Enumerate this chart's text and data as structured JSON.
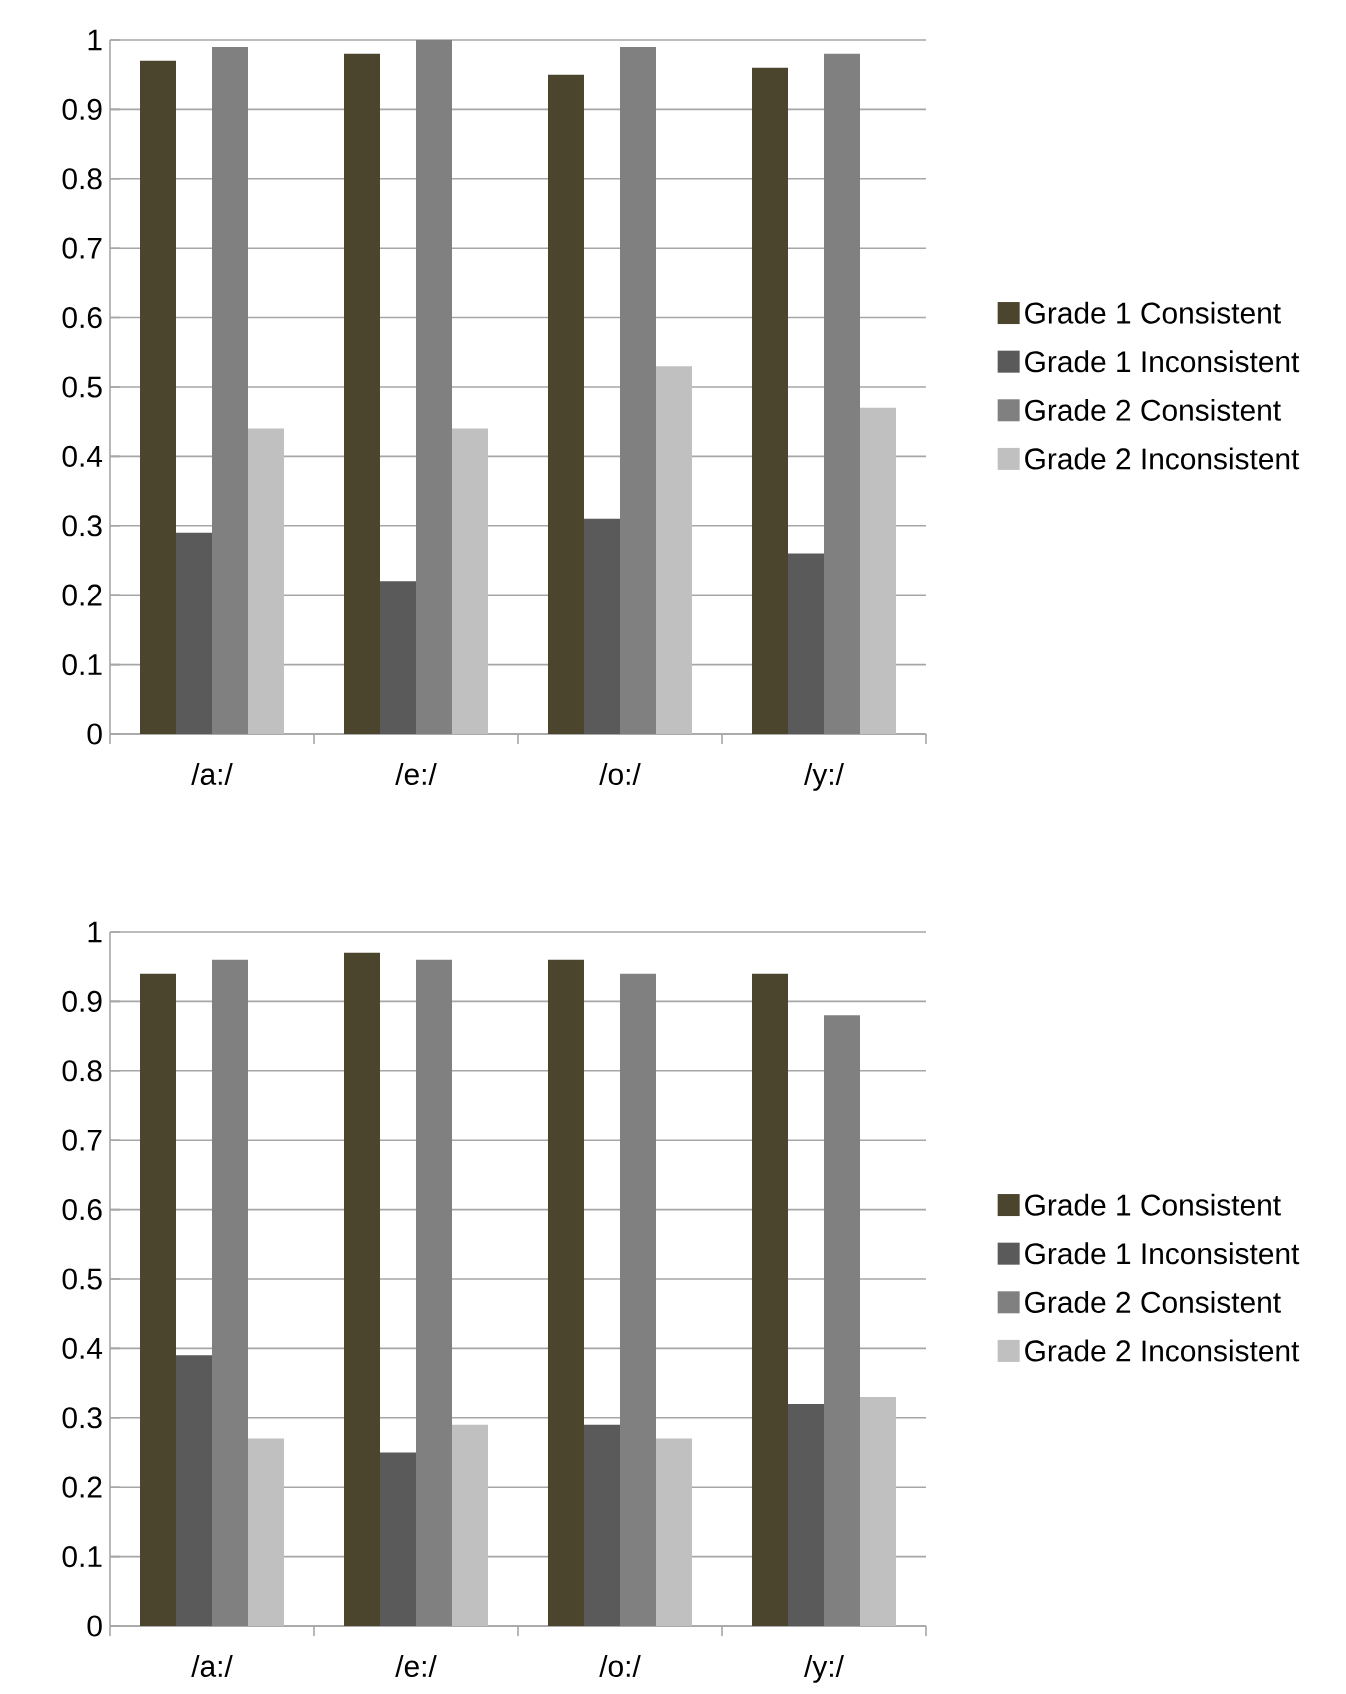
{
  "chart_data": [
    {
      "type": "bar",
      "categories": [
        "/a:/",
        "/e:/",
        "/o:/",
        "/y:/"
      ],
      "ylim": [
        0,
        1
      ],
      "yticks": [
        0,
        0.1,
        0.2,
        0.3,
        0.4,
        0.5,
        0.6,
        0.7,
        0.8,
        0.9,
        1
      ],
      "grid": "y",
      "legend": "right",
      "series": [
        {
          "name": "Grade 1 Consistent",
          "color": "#4b452d",
          "values": [
            0.97,
            0.98,
            0.95,
            0.96
          ]
        },
        {
          "name": "Grade 1 Inconsistent",
          "color": "#5a5a5a",
          "values": [
            0.29,
            0.22,
            0.31,
            0.26
          ]
        },
        {
          "name": "Grade 2 Consistent",
          "color": "#808080",
          "values": [
            0.99,
            1.0,
            0.99,
            0.98
          ]
        },
        {
          "name": "Grade 2 Inconsistent",
          "color": "#c0c0c0",
          "values": [
            0.44,
            0.44,
            0.53,
            0.47
          ]
        }
      ]
    },
    {
      "type": "bar",
      "categories": [
        "/a:/",
        "/e:/",
        "/o:/",
        "/y:/"
      ],
      "ylim": [
        0,
        1
      ],
      "yticks": [
        0,
        0.1,
        0.2,
        0.3,
        0.4,
        0.5,
        0.6,
        0.7,
        0.8,
        0.9,
        1
      ],
      "grid": "y",
      "legend": "right",
      "series": [
        {
          "name": "Grade 1 Consistent",
          "color": "#4b452d",
          "values": [
            0.94,
            0.97,
            0.96,
            0.94
          ]
        },
        {
          "name": "Grade 1 Inconsistent",
          "color": "#5a5a5a",
          "values": [
            0.39,
            0.25,
            0.29,
            0.32
          ]
        },
        {
          "name": "Grade 2 Consistent",
          "color": "#808080",
          "values": [
            0.96,
            0.96,
            0.94,
            0.88
          ]
        },
        {
          "name": "Grade 2 Inconsistent",
          "color": "#c0c0c0",
          "values": [
            0.27,
            0.29,
            0.27,
            0.33
          ]
        }
      ]
    }
  ]
}
